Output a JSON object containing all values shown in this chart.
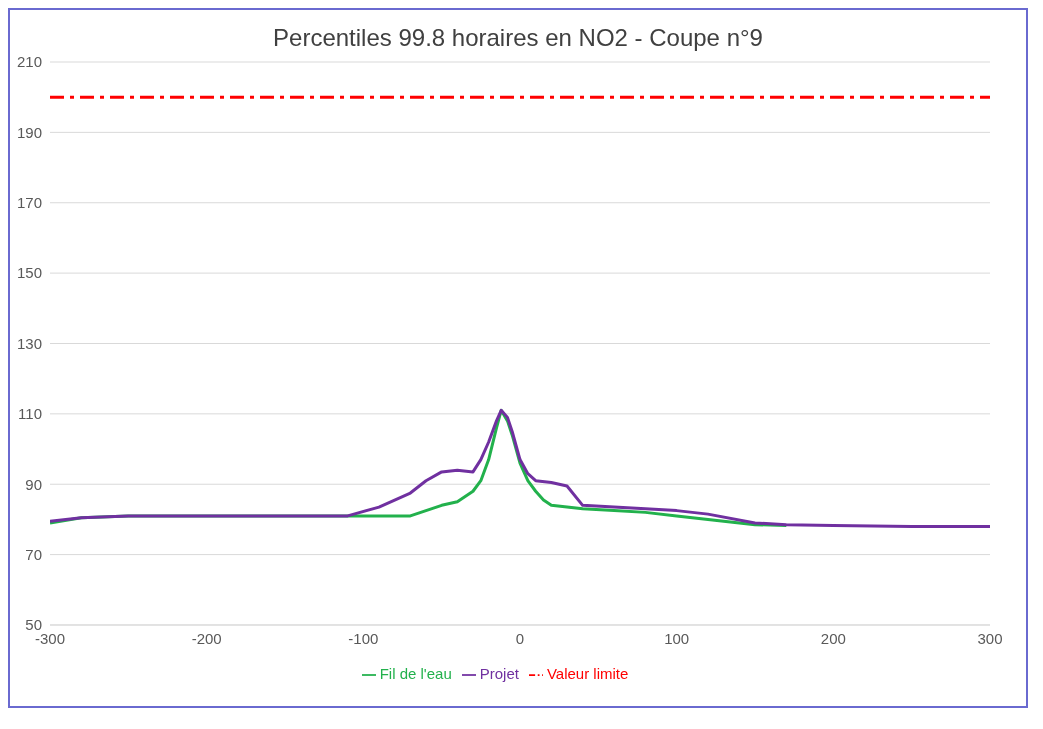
{
  "chart_data": {
    "type": "line",
    "title": "Percentiles 99.8 horaires en NO2 - Coupe n°9",
    "xlim": [
      -300,
      300
    ],
    "xticks": [
      -300,
      -200,
      -100,
      0,
      100,
      200,
      300
    ],
    "ylim": [
      50,
      210
    ],
    "yticks": [
      50,
      70,
      90,
      110,
      130,
      150,
      170,
      190,
      210
    ],
    "grid": "y",
    "legend": "bottom",
    "marker": "none",
    "series": [
      {
        "name": "Fil de l'eau",
        "color": "#22b14c",
        "x": [
          -300,
          -280,
          -250,
          -150,
          -100,
          -70,
          -60,
          -50,
          -40,
          -30,
          -25,
          -20,
          -15,
          -12,
          -8,
          -5,
          0,
          5,
          10,
          15,
          20,
          30,
          40,
          60,
          80,
          100,
          120,
          150,
          170
        ],
        "values": [
          79,
          80.5,
          81,
          81,
          81,
          81,
          82.5,
          84,
          85,
          88,
          91,
          97,
          106,
          111,
          108,
          104,
          96,
          91,
          88,
          85.5,
          84,
          83.5,
          83,
          82.5,
          82,
          81,
          80,
          78.5,
          78.3
        ]
      },
      {
        "name": "Projet",
        "color": "#7030a0",
        "x": [
          -300,
          -280,
          -250,
          -150,
          -110,
          -90,
          -70,
          -60,
          -50,
          -40,
          -30,
          -25,
          -20,
          -15,
          -12,
          -8,
          -5,
          0,
          5,
          10,
          20,
          30,
          40,
          60,
          80,
          100,
          120,
          150,
          170,
          200,
          250,
          300
        ],
        "values": [
          79.5,
          80.5,
          81,
          81,
          81,
          83.5,
          87.5,
          91,
          93.5,
          94,
          93.5,
          97,
          102,
          108,
          111,
          109,
          105,
          97,
          93,
          91,
          90.5,
          89.5,
          84,
          83.5,
          83,
          82.5,
          81.5,
          79,
          78.5,
          78.3,
          78,
          78
        ]
      },
      {
        "name": "Valeur limite",
        "color": "#ff0000",
        "line_style": "dashed",
        "x": [
          -300,
          300
        ],
        "values": [
          200,
          200
        ]
      }
    ]
  }
}
